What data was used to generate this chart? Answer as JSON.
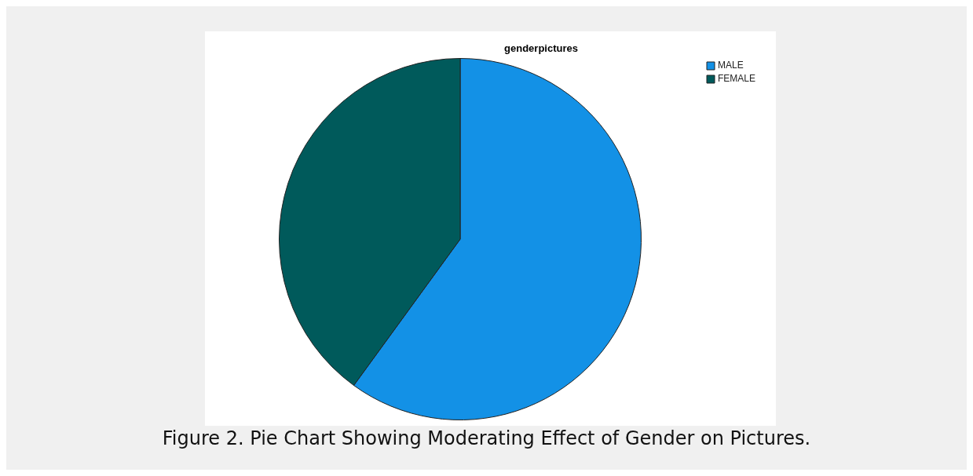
{
  "chart_data": {
    "type": "pie",
    "title": "genderpictures",
    "categories": [
      "MALE",
      "FEMALE"
    ],
    "values": [
      60,
      40
    ],
    "colors": [
      "#1391e6",
      "#005a5b"
    ],
    "legend": "top right",
    "annotations": [
      "Figure 2. Pie Chart Showing Moderating Effect of Gender on Pictures."
    ]
  }
}
